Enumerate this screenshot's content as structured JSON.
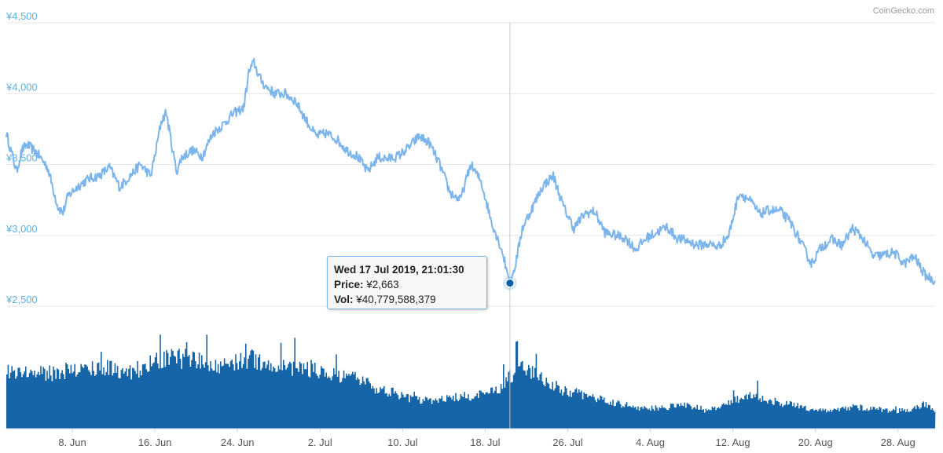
{
  "credit": "CoinGecko.com",
  "tooltip": {
    "date": "Wed 17 Jul 2019, 21:01:30",
    "price_label": "Price:",
    "price_value": "¥2,663",
    "vol_label": "Vol:",
    "vol_value": "¥40,779,588,379"
  },
  "colors": {
    "price_line": "#7cb5ec",
    "volume_bars": "#1665a8",
    "y_labels": "#5fb0e0",
    "marker": "#0b5ea8"
  },
  "chart_data": {
    "type": "line",
    "y_ticks": [
      "¥4,500",
      "¥4,000",
      "¥3,500",
      "¥3,000",
      "¥2,500"
    ],
    "ylim": [
      2500,
      4500
    ],
    "x_ticks": [
      "8. Jun",
      "16. Jun",
      "24. Jun",
      "2. Jul",
      "10. Jul",
      "18. Jul",
      "26. Jul",
      "4. Aug",
      "12. Aug",
      "20. Aug",
      "28. Aug"
    ],
    "x_range_days": [
      0,
      90
    ],
    "series": [
      {
        "points": [
          [
            0,
            3720
          ],
          [
            1,
            3450
          ],
          [
            1.5,
            3600
          ],
          [
            2,
            3640
          ],
          [
            3,
            3580
          ],
          [
            4,
            3480
          ],
          [
            5,
            3200
          ],
          [
            5.5,
            3160
          ],
          [
            6,
            3280
          ],
          [
            7,
            3350
          ],
          [
            8,
            3400
          ],
          [
            9,
            3420
          ],
          [
            10,
            3480
          ],
          [
            11,
            3340
          ],
          [
            12,
            3420
          ],
          [
            13,
            3500
          ],
          [
            14,
            3420
          ],
          [
            14.5,
            3600
          ],
          [
            15,
            3800
          ],
          [
            15.5,
            3870
          ],
          [
            16,
            3650
          ],
          [
            16.5,
            3450
          ],
          [
            17,
            3550
          ],
          [
            18,
            3600
          ],
          [
            19,
            3560
          ],
          [
            20,
            3720
          ],
          [
            21,
            3780
          ],
          [
            22,
            3860
          ],
          [
            23,
            3900
          ],
          [
            23.5,
            4150
          ],
          [
            24,
            4220
          ],
          [
            24.5,
            4120
          ],
          [
            25,
            4060
          ],
          [
            26,
            4000
          ],
          [
            27,
            4000
          ],
          [
            28,
            3950
          ],
          [
            29,
            3820
          ],
          [
            30,
            3700
          ],
          [
            31,
            3720
          ],
          [
            32,
            3680
          ],
          [
            33,
            3600
          ],
          [
            34,
            3560
          ],
          [
            35,
            3450
          ],
          [
            36,
            3550
          ],
          [
            37,
            3540
          ],
          [
            38,
            3560
          ],
          [
            39,
            3620
          ],
          [
            40,
            3700
          ],
          [
            41,
            3650
          ],
          [
            42,
            3500
          ],
          [
            43,
            3300
          ],
          [
            44,
            3250
          ],
          [
            45,
            3500
          ],
          [
            46,
            3380
          ],
          [
            47,
            3100
          ],
          [
            48,
            2900
          ],
          [
            48.8,
            2663
          ],
          [
            49.3,
            2780
          ],
          [
            50,
            3050
          ],
          [
            51,
            3200
          ],
          [
            52,
            3350
          ],
          [
            53,
            3420
          ],
          [
            54,
            3200
          ],
          [
            55,
            3050
          ],
          [
            56,
            3150
          ],
          [
            57,
            3170
          ],
          [
            58,
            3020
          ],
          [
            59,
            3000
          ],
          [
            60,
            2980
          ],
          [
            61,
            2900
          ],
          [
            62,
            2980
          ],
          [
            63,
            3020
          ],
          [
            64,
            3060
          ],
          [
            65,
            2980
          ],
          [
            66,
            2960
          ],
          [
            67,
            2930
          ],
          [
            68,
            2940
          ],
          [
            69,
            2920
          ],
          [
            70,
            3000
          ],
          [
            71,
            3300
          ],
          [
            72,
            3250
          ],
          [
            73,
            3150
          ],
          [
            74,
            3180
          ],
          [
            75,
            3170
          ],
          [
            76,
            3090
          ],
          [
            77,
            2950
          ],
          [
            78,
            2800
          ],
          [
            79,
            2920
          ],
          [
            80,
            2970
          ],
          [
            81,
            2930
          ],
          [
            82,
            3050
          ],
          [
            83,
            2980
          ],
          [
            84,
            2850
          ],
          [
            85,
            2860
          ],
          [
            86,
            2880
          ],
          [
            87,
            2800
          ],
          [
            88,
            2850
          ],
          [
            89,
            2720
          ],
          [
            90,
            2680
          ]
        ]
      }
    ],
    "volume_profile": [
      [
        0,
        0.6
      ],
      [
        3,
        0.55
      ],
      [
        6,
        0.58
      ],
      [
        9,
        0.62
      ],
      [
        12,
        0.58
      ],
      [
        14,
        0.65
      ],
      [
        16,
        0.72
      ],
      [
        18,
        0.7
      ],
      [
        20,
        0.62
      ],
      [
        22,
        0.68
      ],
      [
        24,
        0.7
      ],
      [
        26,
        0.63
      ],
      [
        28,
        0.62
      ],
      [
        30,
        0.6
      ],
      [
        32,
        0.52
      ],
      [
        34,
        0.5
      ],
      [
        36,
        0.4
      ],
      [
        38,
        0.34
      ],
      [
        40,
        0.28
      ],
      [
        42,
        0.3
      ],
      [
        44,
        0.32
      ],
      [
        46,
        0.34
      ],
      [
        48,
        0.42
      ],
      [
        49,
        0.55
      ],
      [
        50,
        0.62
      ],
      [
        52,
        0.5
      ],
      [
        54,
        0.38
      ],
      [
        56,
        0.34
      ],
      [
        58,
        0.28
      ],
      [
        60,
        0.24
      ],
      [
        62,
        0.2
      ],
      [
        64,
        0.22
      ],
      [
        66,
        0.24
      ],
      [
        68,
        0.18
      ],
      [
        70,
        0.26
      ],
      [
        72,
        0.34
      ],
      [
        74,
        0.28
      ],
      [
        76,
        0.24
      ],
      [
        78,
        0.2
      ],
      [
        80,
        0.18
      ],
      [
        82,
        0.22
      ],
      [
        84,
        0.2
      ],
      [
        86,
        0.18
      ],
      [
        88,
        0.2
      ],
      [
        89,
        0.26
      ],
      [
        90,
        0.18
      ]
    ],
    "highlight": {
      "day": 48.8,
      "price": 2663
    }
  }
}
